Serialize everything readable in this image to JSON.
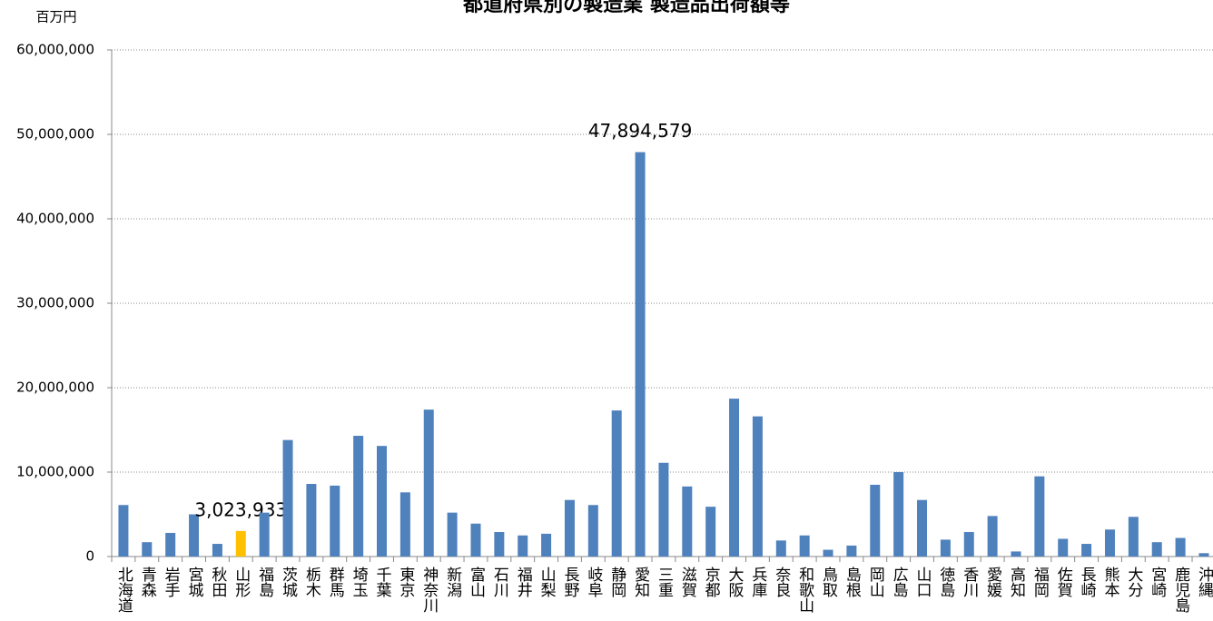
{
  "chart_data": {
    "type": "bar",
    "title": "都道府県別の製造業 製造品出荷額等",
    "y_label": "百万円",
    "categories": [
      "北海道",
      "青森",
      "岩手",
      "宮城",
      "秋田",
      "山形",
      "福島",
      "茨城",
      "栃木",
      "群馬",
      "埼玉",
      "千葉",
      "東京",
      "神奈川",
      "新潟",
      "富山",
      "石川",
      "福井",
      "山梨",
      "長野",
      "岐阜",
      "静岡",
      "愛知",
      "三重",
      "滋賀",
      "京都",
      "大阪",
      "兵庫",
      "奈良",
      "和歌山",
      "鳥取",
      "島根",
      "岡山",
      "広島",
      "山口",
      "徳島",
      "香川",
      "愛媛",
      "高知",
      "福岡",
      "佐賀",
      "長崎",
      "熊本",
      "大分",
      "宮崎",
      "鹿児島",
      "沖縄"
    ],
    "values": [
      6100000,
      1700000,
      2800000,
      5000000,
      1500000,
      3023933,
      5200000,
      13800000,
      8600000,
      8400000,
      14300000,
      13100000,
      7600000,
      17400000,
      5200000,
      3900000,
      2900000,
      2500000,
      2700000,
      6700000,
      6100000,
      17300000,
      47894579,
      11100000,
      8300000,
      5900000,
      18700000,
      16600000,
      1900000,
      2500000,
      800000,
      1300000,
      8500000,
      10000000,
      6700000,
      2000000,
      2900000,
      4800000,
      600000,
      9500000,
      2100000,
      1500000,
      3200000,
      4700000,
      1700000,
      2200000,
      400000
    ],
    "value_labels": [
      null,
      null,
      null,
      null,
      null,
      "3,023,933",
      null,
      null,
      null,
      null,
      null,
      null,
      null,
      null,
      null,
      null,
      null,
      null,
      null,
      null,
      null,
      null,
      "47,894,579",
      null,
      null,
      null,
      null,
      null,
      null,
      null,
      null,
      null,
      null,
      null,
      null,
      null,
      null,
      null,
      null,
      null,
      null,
      null,
      null,
      null,
      null,
      null,
      null
    ],
    "color": "#4f81bd",
    "highlight_color": "#ffc000",
    "highlight": "山形",
    "ylim": [
      0,
      60000000
    ],
    "yticks": [
      0,
      {
        "value": 10000000,
        "label": "10,000,000"
      },
      {
        "value": 20000000,
        "label": "20,000,000"
      },
      {
        "value": 30000000,
        "label": "30,000,000"
      },
      {
        "value": 40000000,
        "label": "40,000,000"
      },
      {
        "value": 50000000,
        "label": "50,000,000"
      },
      {
        "value": 60000000,
        "label": "60,000,000"
      }
    ],
    "grid": true
  }
}
